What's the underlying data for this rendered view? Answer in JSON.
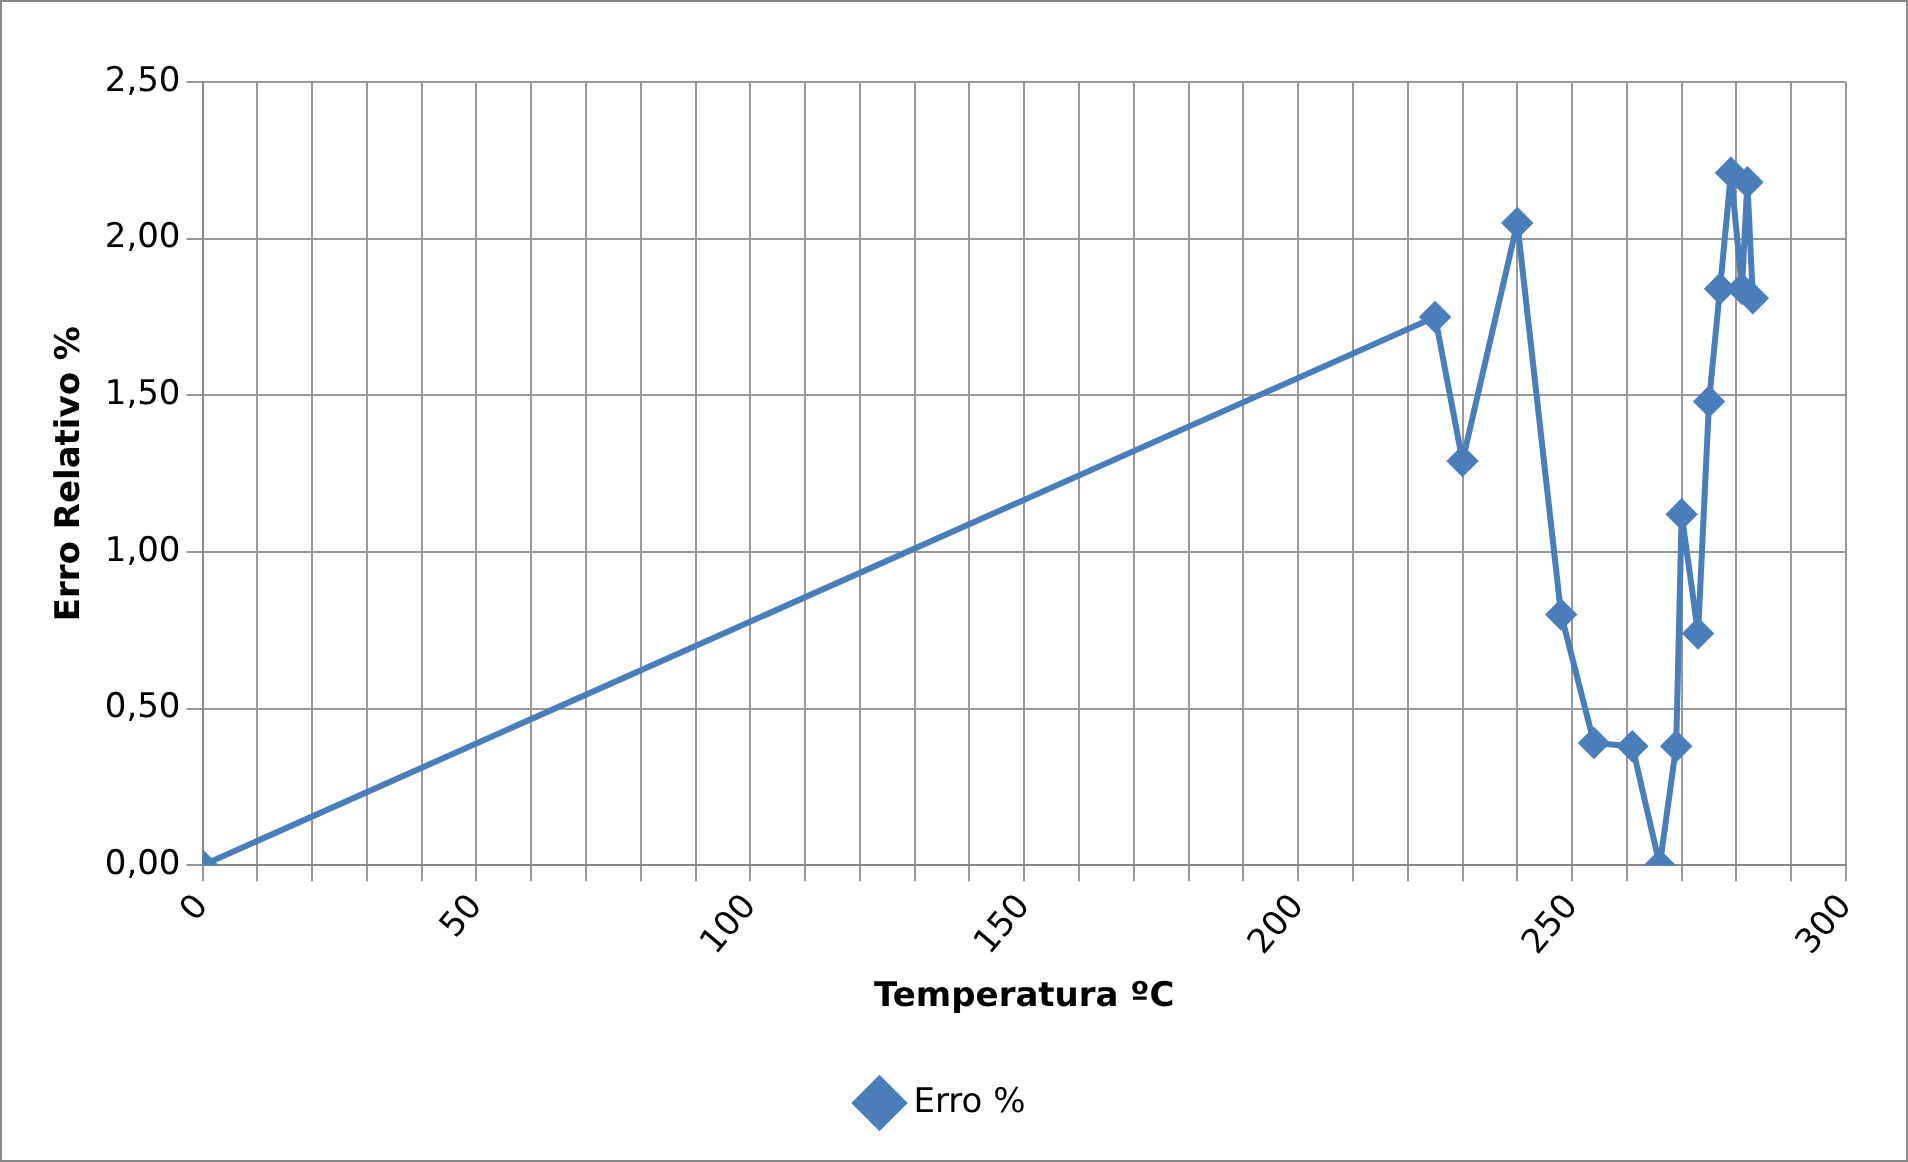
{
  "chart_data": {
    "type": "line",
    "xlabel": "Temperatura ºC",
    "ylabel": "Erro Relativo %",
    "x": [
      0,
      225,
      230,
      240,
      248,
      254,
      261,
      266,
      269,
      270,
      273,
      275,
      277,
      279,
      281,
      282,
      283
    ],
    "series": [
      {
        "name": "Erro %",
        "color": "#4a7ebb",
        "values": [
          0,
          1.75,
          1.29,
          2.05,
          0.8,
          0.39,
          0.38,
          0,
          0.38,
          1.12,
          0.74,
          1.48,
          1.84,
          2.21,
          1.84,
          2.18,
          1.81
        ]
      }
    ],
    "xlim": [
      0,
      300
    ],
    "xticks": [
      0,
      {
        "value": 10,
        "label": null
      },
      {
        "value": 20,
        "label": null
      },
      {
        "value": 30,
        "label": null
      },
      {
        "value": 40,
        "label": null
      },
      50,
      {
        "value": 60,
        "label": null
      },
      {
        "value": 70,
        "label": null
      },
      {
        "value": 80,
        "label": null
      },
      {
        "value": 90,
        "label": null
      },
      100,
      {
        "value": 110,
        "label": null
      },
      {
        "value": 120,
        "label": null
      },
      {
        "value": 130,
        "label": null
      },
      {
        "value": 140,
        "label": null
      },
      150,
      {
        "value": 160,
        "label": null
      },
      {
        "value": 170,
        "label": null
      },
      {
        "value": 180,
        "label": null
      },
      {
        "value": 190,
        "label": null
      },
      200,
      {
        "value": 210,
        "label": null
      },
      {
        "value": 220,
        "label": null
      },
      {
        "value": 230,
        "label": null
      },
      {
        "value": 240,
        "label": null
      },
      250,
      {
        "value": 260,
        "label": null
      },
      {
        "value": 270,
        "label": null
      },
      {
        "value": 280,
        "label": null
      },
      {
        "value": 290,
        "label": null
      },
      300
    ],
    "ylim": [
      0,
      2.5
    ],
    "yticks": [
      {
        "value": 0,
        "label": "0,00"
      },
      {
        "value": 0.5,
        "label": "0,50"
      },
      {
        "value": 1,
        "label": "1,00"
      },
      {
        "value": 1.5,
        "label": "1,50"
      },
      {
        "value": 2,
        "label": "2,00"
      },
      {
        "value": 2.5,
        "label": "2,50"
      }
    ],
    "grid": true,
    "legend": "bottom",
    "marker": "diamond",
    "line_style": "solid"
  }
}
